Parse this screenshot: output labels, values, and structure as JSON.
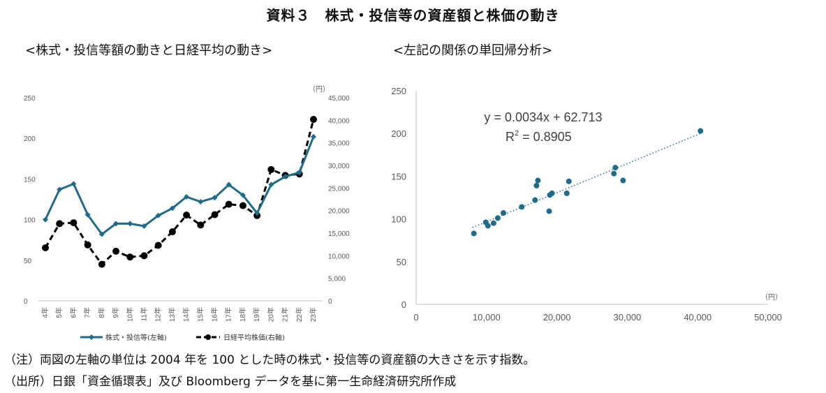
{
  "title": "資料３　株式・投信等の資産額と株価の動き",
  "left_chart_title": "<株式・投信等額の動きと日経平均の動き>",
  "right_chart_title": "<左記の関係の単回帰分析>",
  "notes": {
    "note1": "（注）両図の左軸の単位は 2004 年を 100 とした時の株式・投信等の資産額の大きさを示す指数。",
    "note2": "（出所）日銀「資金循環表」及び Bloomberg データを基に第一生命経済研究所作成"
  },
  "colors": {
    "series1": "#1f6b8a",
    "series2": "#000000",
    "scatter": "#1f6b8a",
    "grid": "#d9d9d9",
    "axis": "#bfbfbf"
  },
  "chart_data": [
    {
      "type": "line",
      "categories": [
        "4年",
        "5年",
        "6年",
        "7年",
        "8年",
        "9年",
        "10年",
        "11年",
        "12年",
        "13年",
        "14年",
        "15年",
        "16年",
        "17年",
        "18年",
        "19年",
        "20年",
        "21年",
        "22年",
        "23年"
      ],
      "series": [
        {
          "name": "株式・投信等(左軸)",
          "axis": "left",
          "values": [
            100,
            137,
            144,
            106,
            82,
            95,
            95,
            92,
            105,
            114,
            128,
            122,
            127,
            143,
            130,
            108,
            143,
            153,
            158,
            202
          ]
        },
        {
          "name": "日経平均株価(右軸)",
          "axis": "right",
          "values": [
            11750,
            17100,
            17300,
            12400,
            8100,
            11000,
            9700,
            10000,
            12300,
            15300,
            19000,
            16800,
            19100,
            21400,
            21100,
            18900,
            29100,
            27800,
            28100,
            40200
          ]
        }
      ],
      "y_left_ticks": [
        "0",
        "50",
        "100",
        "150",
        "200",
        "250"
      ],
      "y_right_ticks": [
        "0",
        "5,000",
        "10,000",
        "15,000",
        "20,000",
        "25,000",
        "30,000",
        "35,000",
        "40,000",
        "45,000"
      ],
      "ylim_left": [
        0,
        250
      ],
      "ylim_right": [
        0,
        45000
      ],
      "right_unit": "（円）",
      "legend_position": "bottom"
    },
    {
      "type": "scatter",
      "points": [
        [
          8200,
          83
        ],
        [
          9900,
          96
        ],
        [
          10200,
          92
        ],
        [
          11000,
          95
        ],
        [
          11600,
          101
        ],
        [
          12400,
          107
        ],
        [
          15000,
          114
        ],
        [
          16900,
          122
        ],
        [
          17100,
          139
        ],
        [
          17300,
          145
        ],
        [
          18900,
          109
        ],
        [
          19000,
          128
        ],
        [
          19300,
          130
        ],
        [
          21400,
          130
        ],
        [
          21700,
          144
        ],
        [
          28100,
          153
        ],
        [
          28300,
          160
        ],
        [
          29400,
          145
        ],
        [
          40400,
          203
        ]
      ],
      "x_ticks": [
        "0",
        "10,000",
        "20,000",
        "30,000",
        "40,000",
        "50,000"
      ],
      "y_ticks": [
        "0",
        "50",
        "100",
        "150",
        "200",
        "250"
      ],
      "xlim": [
        0,
        50000
      ],
      "ylim": [
        0,
        250
      ],
      "x_unit": "（円）",
      "trendline": {
        "slope": 0.0034,
        "intercept": 62.713,
        "x_range": [
          8000,
          40500
        ],
        "style": "dotted"
      },
      "equation": "y = 0.0034x + 62.713",
      "r2_label": "R",
      "r2_sup": "2",
      "r2_value": " = 0.8905"
    }
  ]
}
